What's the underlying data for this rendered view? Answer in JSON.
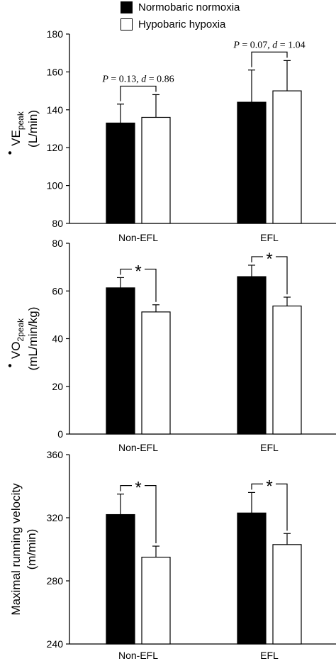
{
  "legend": {
    "items": [
      {
        "label": "Normobaric normoxia",
        "color": "#000000"
      },
      {
        "label": "Hypobaric hypoxia",
        "color": "#ffffff"
      }
    ]
  },
  "chart_data": [
    {
      "type": "bar",
      "ylabel_main": "VE",
      "ylabel_sub": "peak",
      "ylabel_unit": "(L/min)",
      "ylim": [
        80,
        180
      ],
      "yticks": [
        80,
        100,
        120,
        140,
        160,
        180
      ],
      "categories": [
        "Non-EFL",
        "EFL"
      ],
      "series": [
        {
          "name": "Normobaric normoxia",
          "values": [
            133,
            144
          ],
          "errors": [
            10,
            17
          ]
        },
        {
          "name": "Hypobaric hypoxia",
          "values": [
            136,
            150
          ],
          "errors": [
            12,
            16
          ]
        }
      ],
      "annotations": [
        {
          "category": "Non-EFL",
          "p": "0.13",
          "d": "0.86"
        },
        {
          "category": "EFL",
          "p": "0.07",
          "d": "1.04"
        }
      ]
    },
    {
      "type": "bar",
      "ylabel_main": "VO",
      "ylabel_sub": "2peak",
      "ylabel_unit": "(mL/min/kg)",
      "ylim": [
        0,
        80
      ],
      "yticks": [
        0,
        20,
        40,
        60,
        80
      ],
      "categories": [
        "Non-EFL",
        "EFL"
      ],
      "series": [
        {
          "name": "Normobaric normoxia",
          "values": [
            61.3,
            66.0
          ],
          "errors": [
            4.3,
            4.8
          ]
        },
        {
          "name": "Hypobaric hypoxia",
          "values": [
            51.2,
            53.7
          ],
          "errors": [
            3.0,
            3.7
          ]
        }
      ],
      "significance": [
        "*",
        "*"
      ]
    },
    {
      "type": "bar",
      "ylabel_main": "Maximal running velocity",
      "ylabel_unit": "(m/min)",
      "ylim": [
        240,
        360
      ],
      "yticks": [
        240,
        280,
        320,
        360
      ],
      "categories": [
        "Non-EFL",
        "EFL"
      ],
      "series": [
        {
          "name": "Normobaric normoxia",
          "values": [
            322,
            323
          ],
          "errors": [
            13,
            13
          ]
        },
        {
          "name": "Hypobaric hypoxia",
          "values": [
            295,
            303
          ],
          "errors": [
            7,
            7
          ]
        }
      ],
      "significance": [
        "*",
        "*"
      ]
    }
  ]
}
